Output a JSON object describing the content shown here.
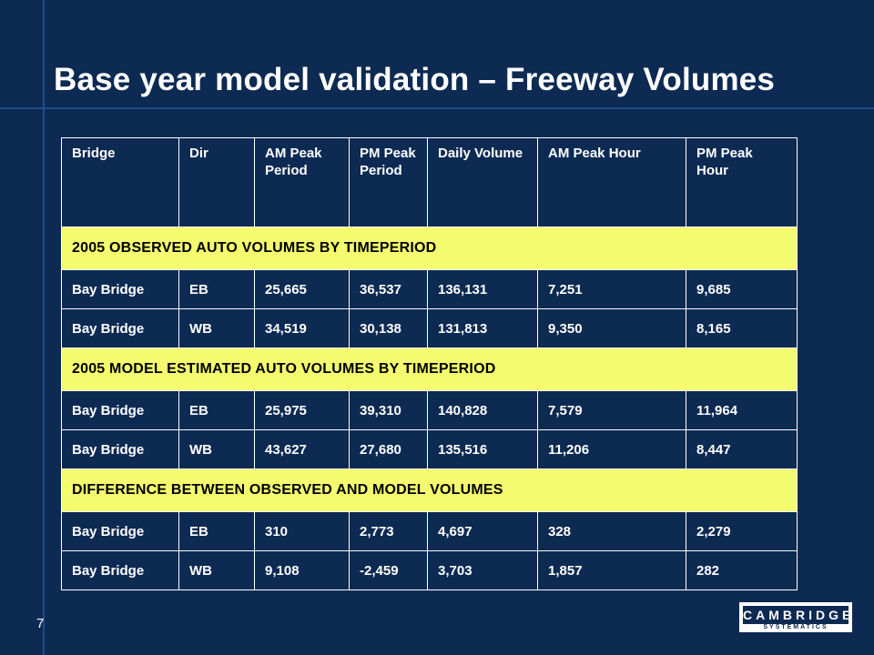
{
  "slide": {
    "title": "Base year model validation – Freeway Volumes",
    "page_number": "7"
  },
  "table": {
    "headers": [
      "Bridge",
      "Dir",
      "AM Peak Period",
      "PM Peak Period",
      "Daily Volume",
      "AM Peak Hour",
      "PM Peak Hour"
    ],
    "sections": [
      {
        "label": "2005 OBSERVED AUTO VOLUMES BY TIMEPERIOD",
        "rows": [
          [
            "Bay Bridge",
            "EB",
            "25,665",
            "36,537",
            "136,131",
            "7,251",
            "9,685"
          ],
          [
            "Bay Bridge",
            "WB",
            "34,519",
            "30,138",
            "131,813",
            "9,350",
            "8,165"
          ]
        ]
      },
      {
        "label": "2005 MODEL ESTIMATED AUTO VOLUMES BY TIMEPERIOD",
        "rows": [
          [
            "Bay Bridge",
            "EB",
            "25,975",
            "39,310",
            "140,828",
            "7,579",
            "11,964"
          ],
          [
            "Bay Bridge",
            "WB",
            "43,627",
            "27,680",
            "135,516",
            "11,206",
            "8,447"
          ]
        ]
      },
      {
        "label": "DIFFERENCE BETWEEN OBSERVED AND MODEL VOLUMES",
        "rows": [
          [
            "Bay Bridge",
            "EB",
            "310",
            "2,773",
            "4,697",
            "328",
            "2,279"
          ],
          [
            "Bay Bridge",
            "WB",
            "9,108",
            "-2,459",
            "3,703",
            "1,857",
            "282"
          ]
        ]
      }
    ]
  },
  "logo": {
    "top_text": "CAMBRIDGE",
    "bottom_text": "SYSTEMATICS"
  },
  "colors": {
    "background": "#0d2a52",
    "accent_line": "#1c4e8a",
    "section_highlight": "#f4fb6e",
    "text": "#ffffff"
  }
}
